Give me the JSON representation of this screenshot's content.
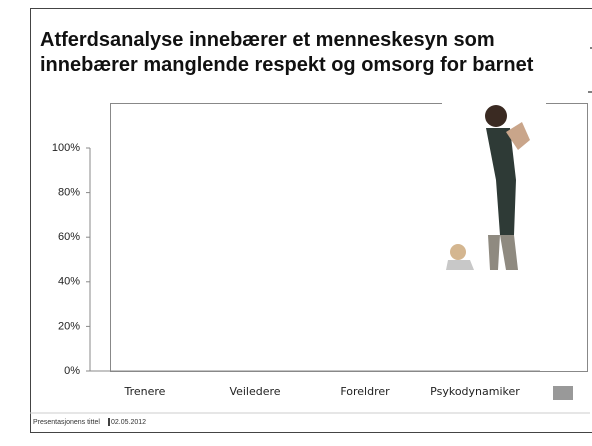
{
  "chart_data": {
    "type": "bar",
    "title": "Atferdsanalyse innebærer et menneskesyn som innebærer manglende respekt og omsorg for barnet",
    "categories": [
      "Trenere",
      "Veiledere",
      "Foreldrer",
      "Psykodynamiker"
    ],
    "ylim": [
      0,
      100
    ],
    "yticks": [
      {
        "value": 0,
        "label": "0%"
      },
      {
        "value": 20,
        "label": "20%"
      },
      {
        "value": 40,
        "label": "40%"
      },
      {
        "value": 60,
        "label": "60%"
      },
      {
        "value": 80,
        "label": "80%"
      },
      {
        "value": 100,
        "label": "100%"
      }
    ]
  },
  "footer": {
    "title": "Presentasjonens tittel",
    "date": "02.05.2012"
  }
}
